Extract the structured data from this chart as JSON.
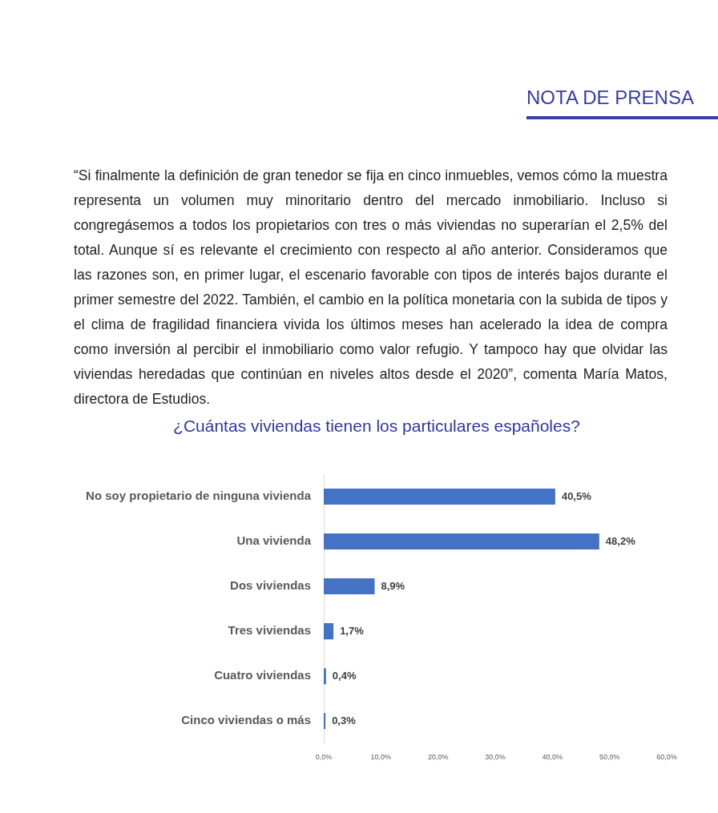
{
  "chart_data": {
    "type": "bar",
    "orientation": "horizontal",
    "title": "¿Cuántas viviendas tienen los particulares españoles?",
    "annotations": [
      "NOTA DE PRENSA",
      "“Si finalmente la definición de gran tenedor se fija en cinco inmuebles, vemos cómo la muestra representa un volumen muy minoritario dentro del mercado inmobiliario. Incluso si congregásemos a todos los propietarios con tres o más viviendas no superarían el 2,5% del total. Aunque sí es relevante el crecimiento con respecto al año anterior. Consideramos que las razones son, en primer lugar, el escenario favorable con tipos de interés bajos durante el primer semestre del 2022. También, el cambio en la política monetaria con la subida de tipos y el clima de fragilidad financiera vivida los últimos meses han acelerado la idea de compra como inversión al percibir el inmobiliario como valor refugio. Y tampoco hay que olvidar las viviendas heredadas que continúan en niveles altos desde el 2020”, comenta María Matos, directora de Estudios."
    ],
    "categories": [
      "No soy propietario de ninguna vivienda",
      "Una vivienda",
      "Dos viviendas",
      "Tres viviendas",
      "Cuatro viviendas",
      "Cinco viviendas o más"
    ],
    "values": [
      40.5,
      48.2,
      8.9,
      1.7,
      0.4,
      0.3
    ],
    "value_labels": [
      "40,5%",
      "48,2%",
      "8,9%",
      "1,7%",
      "0,4%",
      "0,3%"
    ],
    "color": "#4472c4",
    "xlim": [
      0,
      60
    ],
    "xticks": [
      {
        "value": 0,
        "label": "0,0%"
      },
      {
        "value": 10,
        "label": "10,0%"
      },
      {
        "value": 20,
        "label": "20,0%"
      },
      {
        "value": 30,
        "label": "30,0%"
      },
      {
        "value": 40,
        "label": "40,0%"
      },
      {
        "value": 50,
        "label": "50,0%"
      },
      {
        "value": 60,
        "label": "60,0%"
      }
    ]
  }
}
